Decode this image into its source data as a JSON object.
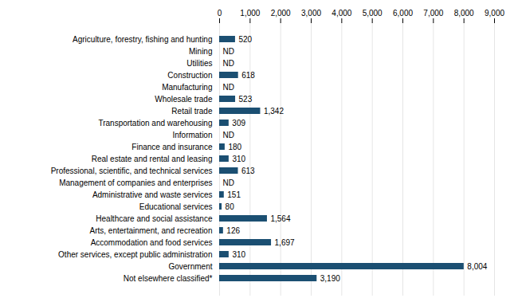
{
  "chart_data": {
    "type": "bar",
    "orientation": "horizontal",
    "categories": [
      "Agriculture, forestry, fishing and hunting",
      "Mining",
      "Utilities",
      "Construction",
      "Manufacturing",
      "Wholesale trade",
      "Retail trade",
      "Transportation and warehousing",
      "Information",
      "Finance and insurance",
      "Real estate and rental and leasing",
      "Professional, scientific, and technical services",
      "Management of companies and enterprises",
      "Administrative and waste services",
      "Educational services",
      "Healthcare and social assistance",
      "Arts, entertainment, and recreation",
      "Accommodation and food services",
      "Other services, except public administration",
      "Government",
      "Not elsewhere classified*"
    ],
    "values": [
      520,
      null,
      null,
      618,
      null,
      523,
      1342,
      309,
      null,
      180,
      310,
      613,
      null,
      151,
      80,
      1564,
      126,
      1697,
      310,
      8004,
      3190
    ],
    "value_labels": [
      "520",
      "ND",
      "ND",
      "618",
      "ND",
      "523",
      "1,342",
      "309",
      "ND",
      "180",
      "310",
      "613",
      "ND",
      "151",
      "80",
      "1,564",
      "126",
      "1,697",
      "310",
      "8,004",
      "3,190"
    ],
    "color": "#1b4f72",
    "xlim": [
      0,
      9000
    ],
    "xticks": [
      0,
      {
        "value": 1000,
        "label": "1,000"
      },
      {
        "value": 2000,
        "label": "2,000"
      },
      {
        "value": 3000,
        "label": "3,000"
      },
      {
        "value": 4000,
        "label": "4,000"
      },
      {
        "value": 5000,
        "label": "5,000"
      },
      {
        "value": 6000,
        "label": "6,000"
      },
      {
        "value": 7000,
        "label": "7,000"
      },
      {
        "value": 8000,
        "label": "8,000"
      },
      {
        "value": 9000,
        "label": "9,000"
      }
    ],
    "grid": true,
    "data_labels": true
  }
}
